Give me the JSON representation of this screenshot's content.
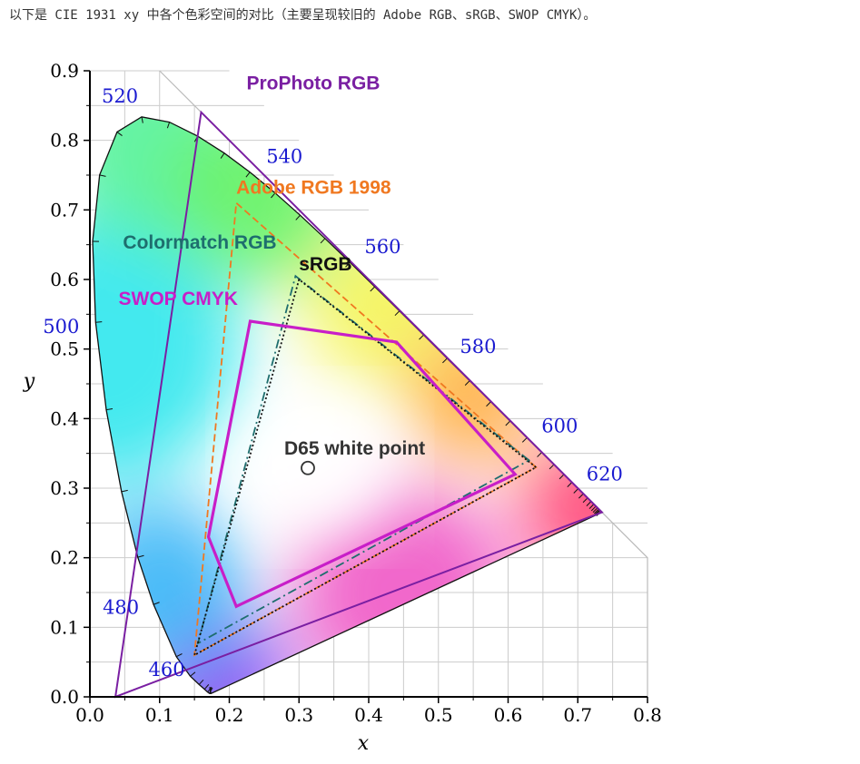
{
  "caption": "以下是 CIE 1931 xy 中各个色彩空间的对比（主要呈现较旧的 Adobe RGB、sRGB、SWOP CMYK）。",
  "chart_data": {
    "type": "scatter",
    "title": "",
    "xlabel": "x",
    "ylabel": "y",
    "xlim": [
      0.0,
      0.8
    ],
    "ylim": [
      0.0,
      0.9
    ],
    "x_ticks": [
      "0.0",
      "0.1",
      "0.2",
      "0.3",
      "0.4",
      "0.5",
      "0.6",
      "0.7",
      "0.8"
    ],
    "y_ticks": [
      "0.0",
      "0.1",
      "0.2",
      "0.3",
      "0.4",
      "0.5",
      "0.6",
      "0.7",
      "0.8",
      "0.9"
    ],
    "grid": true,
    "spectral_locus": [
      [
        0.1741,
        0.005
      ],
      [
        0.1738,
        0.0049
      ],
      [
        0.1736,
        0.0049
      ],
      [
        0.1733,
        0.0048
      ],
      [
        0.1726,
        0.0048
      ],
      [
        0.1714,
        0.0051
      ],
      [
        0.1689,
        0.0069
      ],
      [
        0.1644,
        0.0109
      ],
      [
        0.1566,
        0.0177
      ],
      [
        0.144,
        0.0297
      ],
      [
        0.1241,
        0.0578
      ],
      [
        0.0913,
        0.1327
      ],
      [
        0.0687,
        0.2007
      ],
      [
        0.0454,
        0.295
      ],
      [
        0.0235,
        0.4127
      ],
      [
        0.0082,
        0.5384
      ],
      [
        0.0039,
        0.6548
      ],
      [
        0.0139,
        0.7502
      ],
      [
        0.0389,
        0.812
      ],
      [
        0.0743,
        0.8338
      ],
      [
        0.1142,
        0.8262
      ],
      [
        0.1547,
        0.8059
      ],
      [
        0.1929,
        0.7816
      ],
      [
        0.2296,
        0.7543
      ],
      [
        0.2658,
        0.7243
      ],
      [
        0.3016,
        0.6923
      ],
      [
        0.3373,
        0.6589
      ],
      [
        0.3731,
        0.6245
      ],
      [
        0.4087,
        0.5896
      ],
      [
        0.4441,
        0.5547
      ],
      [
        0.4788,
        0.5202
      ],
      [
        0.5125,
        0.4866
      ],
      [
        0.5448,
        0.4544
      ],
      [
        0.5752,
        0.4242
      ],
      [
        0.6029,
        0.3965
      ],
      [
        0.627,
        0.3725
      ],
      [
        0.6482,
        0.3514
      ],
      [
        0.6658,
        0.334
      ],
      [
        0.6801,
        0.3197
      ],
      [
        0.6915,
        0.3083
      ],
      [
        0.7006,
        0.2993
      ],
      [
        0.7079,
        0.292
      ],
      [
        0.714,
        0.2859
      ],
      [
        0.719,
        0.2809
      ],
      [
        0.723,
        0.277
      ],
      [
        0.726,
        0.274
      ],
      [
        0.7283,
        0.2717
      ],
      [
        0.73,
        0.27
      ],
      [
        0.7311,
        0.2689
      ],
      [
        0.732,
        0.268
      ],
      [
        0.7334,
        0.2666
      ],
      [
        0.7347,
        0.2653
      ]
    ],
    "wavelength_labels": [
      {
        "text": "460",
        "x": 0.144,
        "y": 0.0297
      },
      {
        "text": "480",
        "x": 0.0913,
        "y": 0.1327
      },
      {
        "text": "500",
        "x": 0.0082,
        "y": 0.5384
      },
      {
        "text": "520",
        "x": 0.0743,
        "y": 0.8338
      },
      {
        "text": "540",
        "x": 0.2296,
        "y": 0.7543
      },
      {
        "text": "560",
        "x": 0.3731,
        "y": 0.6245
      },
      {
        "text": "580",
        "x": 0.5125,
        "y": 0.4866
      },
      {
        "text": "600",
        "x": 0.627,
        "y": 0.3725
      },
      {
        "text": "620",
        "x": 0.6915,
        "y": 0.3083
      }
    ],
    "series": [
      {
        "name": "ProPhoto RGB",
        "color": "#7a1fa2",
        "dash": "",
        "points": [
          [
            0.7347,
            0.2653
          ],
          [
            0.1596,
            0.8404
          ],
          [
            0.0366,
            0.0001
          ]
        ]
      },
      {
        "name": "Adobe RGB 1998",
        "color": "#f07820",
        "dash": "8,4",
        "points": [
          [
            0.64,
            0.33
          ],
          [
            0.21,
            0.71
          ],
          [
            0.15,
            0.06
          ]
        ]
      },
      {
        "name": "Colormatch RGB",
        "color": "#1e6e6e",
        "dash": "10,4,2,4",
        "points": [
          [
            0.63,
            0.34
          ],
          [
            0.295,
            0.605
          ],
          [
            0.155,
            0.077
          ]
        ]
      },
      {
        "name": "sRGB",
        "color": "#111111",
        "dash": "2,2.5",
        "points": [
          [
            0.64,
            0.33
          ],
          [
            0.3,
            0.6
          ],
          [
            0.15,
            0.06
          ]
        ]
      },
      {
        "name": "SWOP CMYK",
        "color": "#c81ec8",
        "dash": "",
        "points": [
          [
            0.23,
            0.54
          ],
          [
            0.44,
            0.51
          ],
          [
            0.61,
            0.32
          ],
          [
            0.21,
            0.13
          ],
          [
            0.17,
            0.23
          ]
        ]
      }
    ],
    "annotations": [
      {
        "text": "D65 white point",
        "x": 0.3127,
        "y": 0.329
      }
    ]
  }
}
